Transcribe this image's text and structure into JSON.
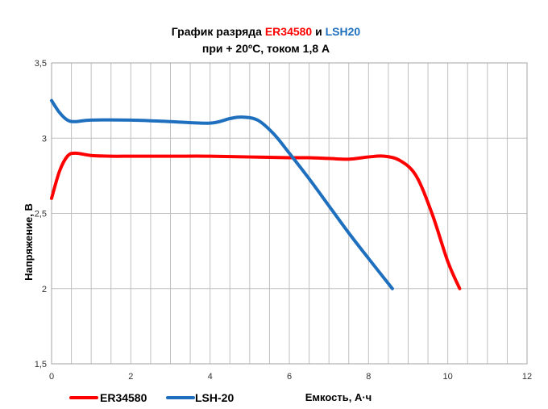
{
  "chart_data": {
    "type": "line",
    "title_line1": {
      "prefix": "График разряда ",
      "s1": "ER34580",
      "mid": " и ",
      "s2": "LSH20"
    },
    "title_line2": "при + 20ºC, током 1,8 А",
    "xlabel": "Емкость, А·ч",
    "ylabel": "Напряжение, В",
    "xlim": [
      0,
      12
    ],
    "ylim": [
      1.5,
      3.5
    ],
    "x_ticks": [
      "0",
      "2",
      "4",
      "6",
      "8",
      "10",
      "12"
    ],
    "y_ticks": [
      "1,5",
      "2",
      "2,5",
      "3",
      "3,5"
    ],
    "grid": true,
    "legend_position": "bottom-left",
    "series": [
      {
        "name": "ER34580",
        "color": "#ff0000",
        "x": [
          0,
          0.2,
          0.4,
          0.6,
          1,
          1.5,
          2,
          3,
          4,
          5,
          6,
          6.5,
          7,
          7.5,
          8,
          8.4,
          8.8,
          9.2,
          9.6,
          10.0,
          10.3
        ],
        "y": [
          2.6,
          2.78,
          2.88,
          2.9,
          2.885,
          2.88,
          2.88,
          2.88,
          2.88,
          2.875,
          2.87,
          2.87,
          2.865,
          2.86,
          2.875,
          2.88,
          2.85,
          2.75,
          2.5,
          2.18,
          2.0
        ]
      },
      {
        "name": "LSH-20",
        "color": "#1f6fbf",
        "x": [
          0,
          0.2,
          0.4,
          0.6,
          1,
          2,
          3,
          4,
          4.5,
          4.8,
          5.2,
          5.6,
          6,
          6.5,
          7,
          7.5,
          8,
          8.6
        ],
        "y": [
          3.25,
          3.17,
          3.12,
          3.11,
          3.12,
          3.12,
          3.11,
          3.1,
          3.13,
          3.14,
          3.12,
          3.03,
          2.9,
          2.73,
          2.55,
          2.37,
          2.2,
          2.0
        ]
      }
    ]
  }
}
